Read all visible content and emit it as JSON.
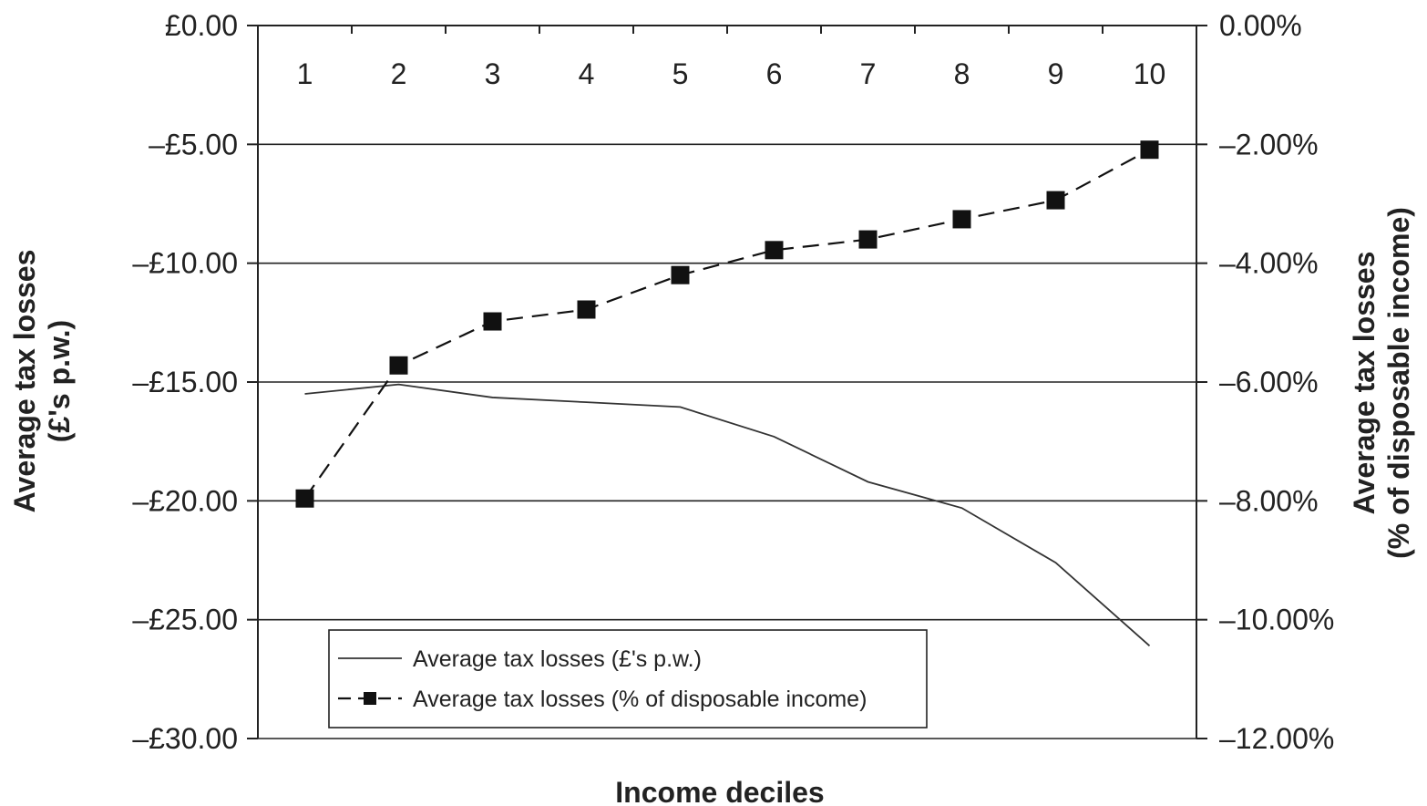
{
  "chart_data": {
    "type": "line",
    "x": [
      1,
      2,
      3,
      4,
      5,
      6,
      7,
      8,
      9,
      10
    ],
    "xlabel": "Income deciles",
    "x_tick_labels": [
      "1",
      "2",
      "3",
      "4",
      "5",
      "6",
      "7",
      "8",
      "9",
      "10"
    ],
    "y_left": {
      "label_lines": [
        "Average tax losses",
        "(£'s p.w.)"
      ],
      "range": [
        -30,
        0
      ],
      "ticks": [
        0,
        -5,
        -10,
        -15,
        -20,
        -25,
        -30
      ],
      "tick_labels": [
        "£0.00",
        "–£5.00",
        "–£10.00",
        "–£15.00",
        "–£20.00",
        "–£25.00",
        "–£30.00"
      ]
    },
    "y_right": {
      "label_lines": [
        "Average tax losses",
        "(% of disposable income)"
      ],
      "range": [
        -12,
        0
      ],
      "ticks": [
        0,
        -2,
        -4,
        -6,
        -8,
        -10,
        -12
      ],
      "tick_labels": [
        "0.00%",
        "–2.00%",
        "–4.00%",
        "–6.00%",
        "–8.00%",
        "–10.00%",
        "–12.00%"
      ]
    },
    "grid": "horizontal",
    "legend_position": "bottom-left",
    "series": [
      {
        "name": "Average tax losses (£'s p.w.)",
        "axis": "left",
        "style": "solid",
        "color": "#333333",
        "values": [
          -15.5,
          -15.1,
          -15.65,
          -15.85,
          -16.05,
          -17.3,
          -19.2,
          -20.3,
          -22.6,
          -26.1
        ]
      },
      {
        "name": "Average tax losses (% of disposable income)",
        "axis": "right",
        "style": "dashed",
        "marker": "square",
        "color": "#111111",
        "values": [
          -7.96,
          -5.72,
          -4.98,
          -4.78,
          -4.2,
          -3.78,
          -3.6,
          -3.26,
          -2.94,
          -2.09
        ]
      }
    ]
  }
}
